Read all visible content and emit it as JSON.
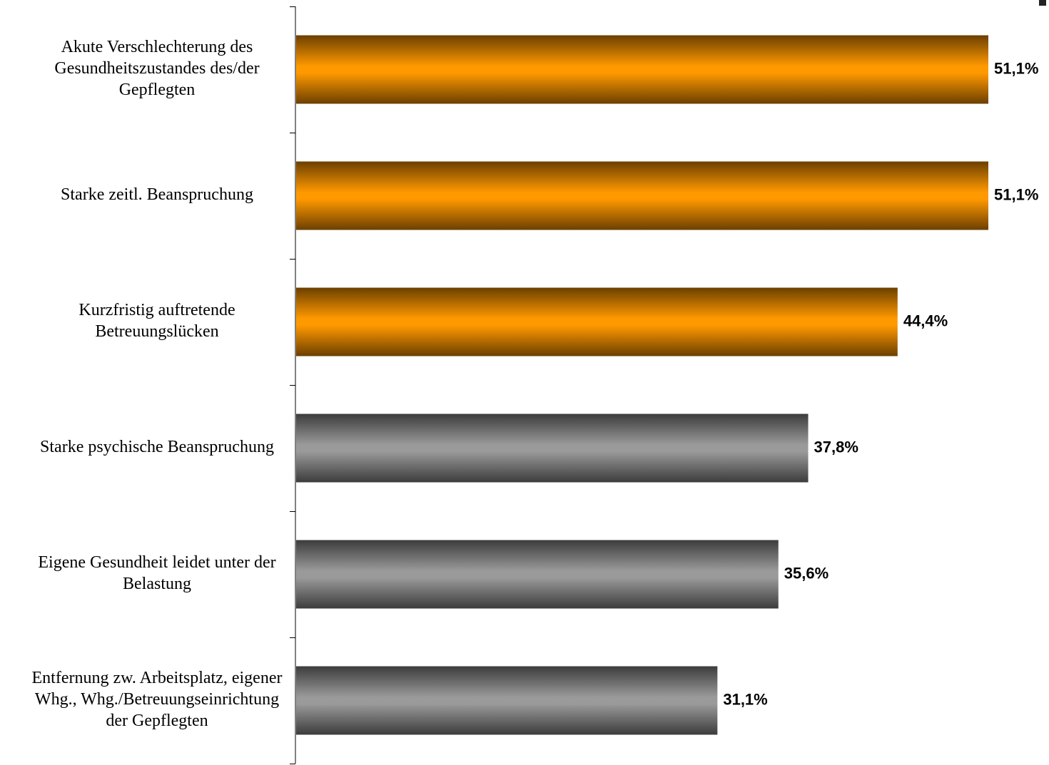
{
  "chart_data": {
    "type": "bar",
    "orientation": "horizontal",
    "title": "",
    "xlabel": "",
    "ylabel": "",
    "xlim": [
      0,
      51.1
    ],
    "value_suffix": "%",
    "grid": false,
    "categories": [
      [
        "Akute Verschlechterung des",
        "Gesundheitszustandes des/der",
        "Gepflegten"
      ],
      [
        "Starke zeitl. Beanspruchung"
      ],
      [
        "Kurzfristig auftretende",
        "Betreuungslücken"
      ],
      [
        "Starke psychische Beanspruchung"
      ],
      [
        "Eigene Gesundheit leidet unter der",
        "Belastung"
      ],
      [
        "Entfernung zw. Arbeitsplatz, eigener",
        "Whg., Whg./Betreuungseinrichtung",
        "der Gepflegten"
      ]
    ],
    "values": [
      51.1,
      51.1,
      44.4,
      37.8,
      35.6,
      31.1
    ],
    "value_labels": [
      "51,1%",
      "51,1%",
      "44,4%",
      "37,8%",
      "35,6%",
      "31,1%"
    ],
    "bar_colors": [
      "orange",
      "orange",
      "orange",
      "gray",
      "gray",
      "gray"
    ]
  },
  "colors": {
    "orange_light": "#ff9900",
    "orange_dark": "#6b3f00",
    "gray_light": "#9a9a9a",
    "gray_dark": "#3c3c3c",
    "axis": "#000000"
  }
}
